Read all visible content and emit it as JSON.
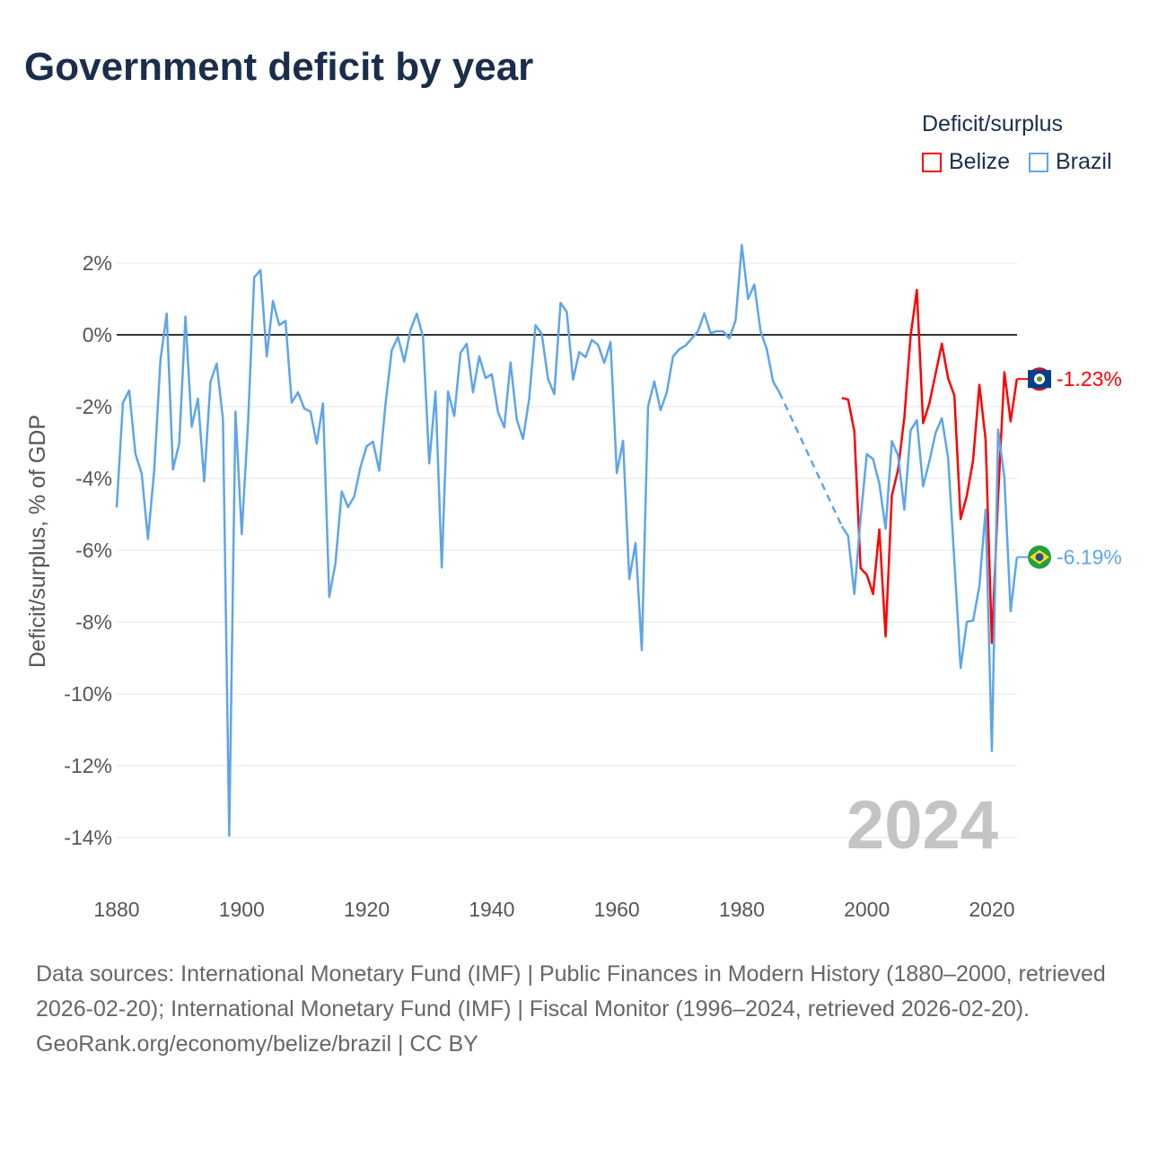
{
  "title": "Government deficit by year",
  "legend": {
    "title": "Deficit/surplus",
    "items": [
      {
        "name": "Belize",
        "color": "#ff0000"
      },
      {
        "name": "Brazil",
        "color": "#5ea5ea"
      }
    ]
  },
  "footer": {
    "sources": "Data sources: International Monetary Fund (IMF) | Public Finances in Modern History (1880–2000, retrieved 2026-02-20); International Monetary Fund (IMF) | Fiscal Monitor (1996–2024, retrieved 2026-02-20).",
    "credit": "GeoRank.org/economy/belize/brazil | CC BY"
  },
  "chart_data": {
    "type": "line",
    "title": "Government deficit by year",
    "xlabel": "",
    "ylabel": "Deficit/surplus, % of GDP",
    "xlim": [
      1880,
      2024
    ],
    "ylim": [
      -14,
      2.5
    ],
    "xticks": [
      1880,
      1900,
      1920,
      1940,
      1960,
      1980,
      2000,
      2020
    ],
    "yticks": [
      {
        "v": 2,
        "label": "2%"
      },
      {
        "v": 0,
        "label": "0%"
      },
      {
        "v": -2,
        "label": "-2%"
      },
      {
        "v": -4,
        "label": "-4%"
      },
      {
        "v": -6,
        "label": "-6%"
      },
      {
        "v": -8,
        "label": "-8%"
      },
      {
        "v": -10,
        "label": "-10%"
      },
      {
        "v": -12,
        "label": "-12%"
      },
      {
        "v": -14,
        "label": "-14%"
      }
    ],
    "year_label": "2024",
    "series": [
      {
        "name": "Brazil",
        "color": "#5ea5ea",
        "start": 1880,
        "end_label": "-6.19%",
        "values": [
          -4.81,
          -1.89,
          -1.55,
          -3.32,
          -3.87,
          -5.68,
          -3.78,
          -0.7,
          0.59,
          -3.75,
          -3.03,
          0.51,
          -2.56,
          -1.78,
          -4.08,
          -1.31,
          -0.8,
          -2.36,
          -13.95,
          -2.14,
          -5.55,
          -2.5,
          1.6,
          1.8,
          -0.6,
          0.94,
          0.27,
          0.39,
          -1.89,
          -1.6,
          -2.05,
          -2.14,
          -3.03,
          -1.91,
          -7.3,
          -6.35,
          -4.36,
          -4.8,
          -4.5,
          -3.68,
          -3.1,
          -2.98,
          -3.78,
          -1.93,
          -0.43,
          -0.06,
          -0.75,
          0.14,
          0.59,
          -0.06,
          -3.58,
          -1.58,
          -6.48,
          -1.58,
          -2.26,
          -0.5,
          -0.25,
          -1.6,
          -0.6,
          -1.2,
          -1.1,
          -2.15,
          -2.58,
          -0.77,
          -2.36,
          -2.9,
          -1.76,
          0.27,
          0.02,
          -1.23,
          -1.65,
          0.89,
          0.64,
          -1.25,
          -0.48,
          -0.62,
          -0.14,
          -0.28,
          -0.78,
          -0.2,
          -3.85,
          -2.95,
          -6.8,
          -5.8,
          -8.78,
          -2.0,
          -1.3,
          -2.1,
          -1.6,
          -0.6,
          -0.4,
          -0.3,
          -0.1,
          0.1,
          0.6,
          0.05,
          0.1,
          0.1,
          -0.1,
          0.4,
          2.5,
          1.0,
          1.4,
          0.1,
          -0.4,
          -1.3,
          -1.6,
          null,
          null,
          null,
          null,
          null,
          null,
          null,
          null,
          null,
          -5.33,
          -5.6,
          -7.22,
          -5.1,
          -3.32,
          -3.46,
          -4.15,
          -5.4,
          -2.96,
          -3.36,
          -4.87,
          -2.66,
          -2.38,
          -4.22,
          -3.52,
          -2.73,
          -2.32,
          -3.43,
          -6.3,
          -9.28,
          -7.99,
          -7.96,
          -7.0,
          -4.87,
          -11.59,
          -2.64,
          -3.97,
          -7.7,
          -6.19
        ]
      },
      {
        "name": "Belize",
        "color": "#ff0000",
        "start": 1996,
        "end_label": "-1.23%",
        "values": [
          -1.76,
          -1.8,
          -2.68,
          -6.5,
          -6.68,
          -7.22,
          -5.42,
          -8.4,
          -4.48,
          -3.75,
          -2.3,
          -0.03,
          1.25,
          -2.46,
          -1.91,
          -1.08,
          -0.25,
          -1.21,
          -1.69,
          -5.13,
          -4.48,
          -3.49,
          -1.39,
          -2.92,
          -8.58,
          -4.5,
          -1.04,
          -2.41,
          -1.23
        ]
      }
    ]
  }
}
